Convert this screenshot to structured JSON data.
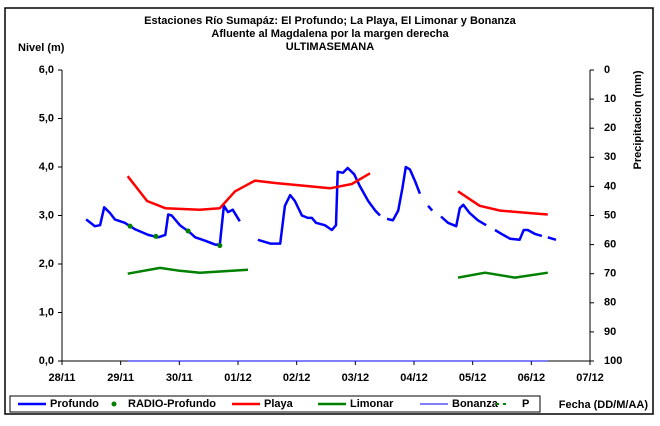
{
  "chart_data": {
    "type": "line",
    "title": "Estaciones Río Sumapáz: El Profundo; La Playa, El Limonar y Bonanza",
    "subtitle": "Afluente al Magdalena por la margen derecha",
    "subtitle2": "ULTIMASEMANA",
    "ylabel": "Nivel (m)",
    "y2label": "Precipitacion (mm)",
    "xlabel": "Fecha (DD/M/AA)",
    "xlim": [
      0,
      9
    ],
    "xticks": [
      {
        "value": 0,
        "label": "28/11"
      },
      {
        "value": 1,
        "label": "29/11"
      },
      {
        "value": 2,
        "label": "30/11"
      },
      {
        "value": 3,
        "label": "01/12"
      },
      {
        "value": 4,
        "label": "02/12"
      },
      {
        "value": 5,
        "label": "03/12"
      },
      {
        "value": 6,
        "label": "04/12"
      },
      {
        "value": 7,
        "label": "05/12"
      },
      {
        "value": 8,
        "label": "06/12"
      },
      {
        "value": 9,
        "label": "07/12"
      }
    ],
    "ylim": [
      0,
      6
    ],
    "yticks": [
      {
        "value": 0,
        "label": "0,0"
      },
      {
        "value": 1,
        "label": "1,0"
      },
      {
        "value": 2,
        "label": "2,0"
      },
      {
        "value": 3,
        "label": "3,0"
      },
      {
        "value": 4,
        "label": "4,0"
      },
      {
        "value": 5,
        "label": "5,0"
      },
      {
        "value": 6,
        "label": "6,0"
      }
    ],
    "y2lim": [
      0,
      100
    ],
    "y2_inverted": true,
    "y2ticks": [
      0,
      10,
      20,
      30,
      40,
      50,
      60,
      70,
      80,
      90,
      100
    ],
    "grid": false,
    "legend": "bottom",
    "series": [
      {
        "name": "Profundo",
        "color": "#0000ff",
        "style": "line",
        "width": 2.5,
        "x": [
          0.41,
          0.56,
          0.65,
          0.72,
          0.82,
          0.9,
          1.07,
          1.24,
          1.47,
          1.64,
          1.76,
          1.81,
          1.87,
          2.01,
          2.18,
          2.27,
          2.44,
          2.61,
          2.69,
          2.76,
          2.83,
          2.91,
          3.03,
          3.2,
          3.34,
          3.55,
          3.72,
          3.8,
          3.89,
          3.97,
          4.09,
          4.19,
          4.26,
          4.33,
          4.48,
          4.6,
          4.67,
          4.7,
          4.79,
          4.87,
          4.98,
          5.08,
          5.22,
          5.34,
          5.42,
          5.48,
          5.54,
          5.64,
          5.73,
          5.8,
          5.86,
          5.93,
          6.02,
          6.1,
          6.17,
          6.24,
          6.31,
          6.38,
          6.46,
          6.58,
          6.72,
          6.78,
          6.84,
          6.95,
          7.09,
          7.23,
          7.3,
          7.38,
          7.52,
          7.64,
          7.8,
          7.87,
          7.94,
          8.06,
          8.18,
          8.23,
          8.28,
          8.42
        ],
        "values": [
          2.92,
          2.78,
          2.8,
          3.17,
          3.05,
          2.92,
          2.85,
          2.72,
          2.6,
          2.55,
          2.6,
          3.02,
          3.0,
          2.8,
          2.65,
          2.55,
          2.48,
          2.4,
          2.4,
          3.2,
          3.07,
          3.12,
          2.88,
          null,
          2.5,
          2.42,
          2.42,
          3.2,
          3.42,
          3.3,
          3.0,
          2.95,
          2.95,
          2.85,
          2.8,
          2.7,
          2.8,
          3.9,
          3.88,
          3.98,
          3.85,
          3.6,
          3.3,
          3.1,
          3.0,
          null,
          2.93,
          2.9,
          3.1,
          3.55,
          4.0,
          3.95,
          3.7,
          3.45,
          null,
          3.2,
          3.1,
          null,
          2.98,
          2.85,
          2.78,
          3.15,
          3.22,
          3.05,
          2.9,
          2.8,
          null,
          2.7,
          2.6,
          2.52,
          2.5,
          2.7,
          2.7,
          2.62,
          2.58,
          null,
          2.55,
          2.5
        ]
      },
      {
        "name": "RADIO-Profundo",
        "color": "#008000",
        "style": "dots",
        "x": [
          1.16,
          1.6,
          2.15,
          2.69
        ],
        "values": [
          2.78,
          2.57,
          2.68,
          2.38
        ]
      },
      {
        "name": "Playa",
        "color": "#ff0000",
        "style": "line",
        "width": 2.5,
        "x": [
          1.12,
          1.45,
          1.76,
          2.35,
          2.69,
          2.95,
          3.29,
          3.63,
          4.06,
          4.57,
          4.94,
          5.25,
          6.0,
          6.75,
          7.12,
          7.47,
          7.98,
          8.28
        ],
        "values": [
          3.81,
          3.3,
          3.15,
          3.12,
          3.15,
          3.5,
          3.72,
          3.67,
          3.62,
          3.56,
          3.65,
          3.87,
          null,
          3.5,
          3.2,
          3.1,
          3.05,
          3.02
        ]
      },
      {
        "name": "Limonar",
        "color": "#008000",
        "style": "line",
        "width": 2.5,
        "x": [
          1.12,
          1.67,
          2.01,
          2.35,
          3.17,
          5.0,
          6.75,
          7.21,
          7.72,
          8.28
        ],
        "values": [
          1.8,
          1.92,
          1.86,
          1.82,
          1.88,
          null,
          1.72,
          1.82,
          1.72,
          1.82
        ]
      },
      {
        "name": "Bonanza",
        "color": "#0000ff",
        "style": "line",
        "width": 1,
        "x": [
          1.12,
          8.28
        ],
        "values": [
          0,
          0
        ]
      },
      {
        "name": "P",
        "color": "#008000",
        "style": "dash",
        "axis": "y2",
        "x": [],
        "values": []
      }
    ]
  }
}
